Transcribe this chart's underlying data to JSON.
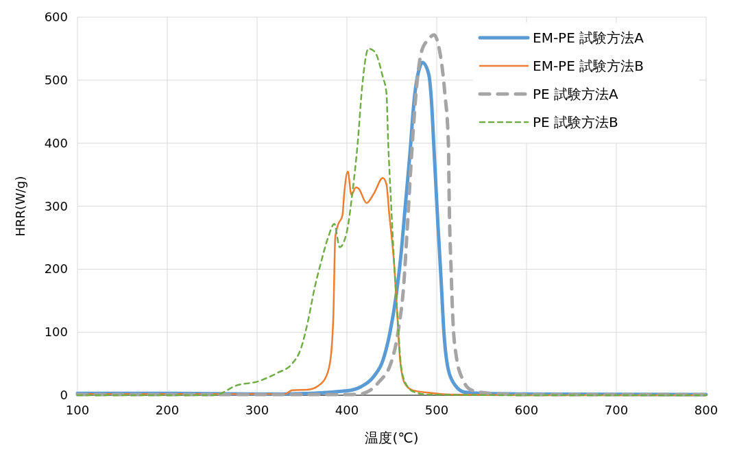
{
  "chart_data": {
    "type": "line",
    "xlabel": "温度(℃)",
    "ylabel": "HRR(W/g)",
    "xlim": [
      100,
      800
    ],
    "ylim": [
      0,
      600
    ],
    "xticks": [
      100,
      200,
      300,
      400,
      500,
      600,
      700,
      800
    ],
    "yticks": [
      0,
      100,
      200,
      300,
      400,
      500,
      600
    ],
    "grid": true,
    "legend": "top right",
    "series": [
      {
        "name": "EM-PE 試験方法A",
        "color": "#5b9bd5",
        "line_style": "solid",
        "x": [
          100,
          200,
          300,
          330,
          400,
          415,
          430,
          440,
          448,
          455,
          460,
          465,
          470,
          475,
          481,
          484,
          491,
          494,
          497,
          501,
          505,
          508,
          513,
          521,
          531,
          551,
          600,
          800
        ],
        "values": [
          3,
          3,
          2,
          2,
          7,
          13,
          30,
          55,
          100,
          160,
          220,
          300,
          380,
          470,
          520,
          528,
          510,
          470,
          390,
          280,
          180,
          100,
          40,
          15,
          5,
          3,
          2,
          1
        ]
      },
      {
        "name": "EM-PE 試験方法B",
        "color": "#ed7d31",
        "line_style": "solid",
        "x": [
          100,
          200,
          300,
          331,
          339,
          357,
          367,
          377,
          382,
          385,
          387,
          390,
          395,
          397,
          401,
          405,
          410,
          413,
          422,
          430,
          440,
          444,
          447,
          453,
          456,
          459,
          464,
          473,
          491,
          516,
          600,
          800
        ],
        "values": [
          2,
          2,
          2,
          2,
          8,
          9,
          14,
          30,
          60,
          130,
          250,
          270,
          285,
          320,
          355,
          318,
          330,
          328,
          305,
          320,
          345,
          335,
          290,
          200,
          130,
          60,
          20,
          8,
          4,
          1,
          0,
          0
        ]
      },
      {
        "name": "PE 試験方法A",
        "color": "#a5a5a5",
        "line_style": "dashed",
        "x": [
          100,
          200,
          300,
          400,
          415,
          435,
          450,
          458,
          463,
          467,
          472,
          477,
          483,
          491,
          497,
          502,
          509,
          513,
          514,
          516,
          518,
          522,
          529,
          539,
          560,
          600,
          800
        ],
        "values": [
          1,
          1,
          1,
          1,
          2,
          20,
          55,
          110,
          170,
          260,
          380,
          480,
          545,
          565,
          572,
          555,
          480,
          400,
          300,
          200,
          120,
          60,
          25,
          8,
          3,
          1,
          1
        ]
      },
      {
        "name": "PE 試験方法B",
        "color": "#70ad47",
        "line_style": "dashed",
        "x": [
          100,
          200,
          250,
          258,
          276,
          301,
          322,
          339,
          349,
          357,
          364,
          371,
          379,
          386,
          392,
          400,
          406,
          412,
          417,
          424,
          431,
          440,
          444,
          446,
          449,
          453,
          457,
          460,
          465,
          475,
          491,
          600,
          800
        ],
        "values": [
          0,
          0,
          0,
          2,
          15,
          22,
          35,
          50,
          75,
          120,
          170,
          210,
          250,
          272,
          235,
          260,
          320,
          400,
          490,
          550,
          545,
          505,
          480,
          400,
          310,
          200,
          110,
          50,
          20,
          5,
          1,
          0,
          0
        ]
      }
    ]
  }
}
